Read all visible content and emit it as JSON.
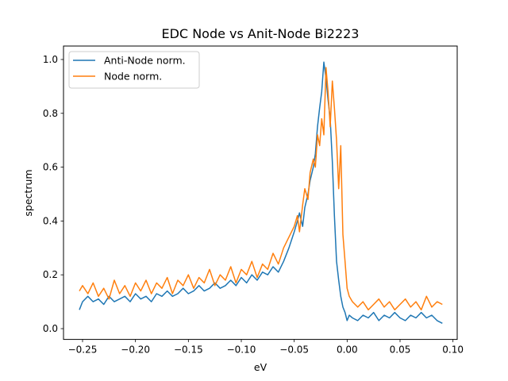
{
  "chart_data": {
    "type": "line",
    "title": "EDC Node vs Anit-Node Bi2223",
    "xlabel": "eV",
    "ylabel": "spectrum",
    "xlim": [
      -0.268,
      0.104
    ],
    "ylim": [
      -0.04,
      1.05
    ],
    "xticks": [
      -0.25,
      -0.2,
      -0.15,
      -0.1,
      -0.05,
      0.0,
      0.05,
      0.1
    ],
    "xtick_labels": [
      "−0.25",
      "−0.20",
      "−0.15",
      "−0.10",
      "−0.05",
      "0.00",
      "0.05",
      "0.10"
    ],
    "yticks": [
      0.0,
      0.2,
      0.4,
      0.6,
      0.8,
      1.0
    ],
    "ytick_labels": [
      "0.0",
      "0.2",
      "0.4",
      "0.6",
      "0.8",
      "1.0"
    ],
    "grid": false,
    "legend_position": "top-left",
    "series": [
      {
        "name": "Anti-Node norm.",
        "color": "#1f77b4",
        "x": [
          -0.253,
          -0.25,
          -0.245,
          -0.24,
          -0.235,
          -0.23,
          -0.225,
          -0.22,
          -0.215,
          -0.21,
          -0.205,
          -0.2,
          -0.195,
          -0.19,
          -0.185,
          -0.18,
          -0.175,
          -0.17,
          -0.165,
          -0.16,
          -0.155,
          -0.15,
          -0.145,
          -0.14,
          -0.135,
          -0.13,
          -0.125,
          -0.12,
          -0.115,
          -0.11,
          -0.105,
          -0.1,
          -0.095,
          -0.09,
          -0.085,
          -0.08,
          -0.075,
          -0.07,
          -0.065,
          -0.06,
          -0.055,
          -0.05,
          -0.047,
          -0.045,
          -0.042,
          -0.04,
          -0.037,
          -0.035,
          -0.032,
          -0.03,
          -0.028,
          -0.026,
          -0.024,
          -0.022,
          -0.02,
          -0.018,
          -0.016,
          -0.014,
          -0.012,
          -0.01,
          -0.008,
          -0.006,
          -0.004,
          -0.002,
          0.0,
          0.002,
          0.005,
          0.01,
          0.015,
          0.02,
          0.025,
          0.03,
          0.035,
          0.04,
          0.045,
          0.05,
          0.055,
          0.06,
          0.065,
          0.07,
          0.075,
          0.08,
          0.085,
          0.09
        ],
        "y": [
          0.07,
          0.1,
          0.12,
          0.1,
          0.11,
          0.09,
          0.12,
          0.1,
          0.11,
          0.12,
          0.1,
          0.13,
          0.11,
          0.12,
          0.1,
          0.13,
          0.12,
          0.14,
          0.12,
          0.13,
          0.15,
          0.13,
          0.14,
          0.16,
          0.14,
          0.15,
          0.17,
          0.15,
          0.16,
          0.18,
          0.16,
          0.19,
          0.17,
          0.2,
          0.18,
          0.21,
          0.2,
          0.23,
          0.21,
          0.25,
          0.3,
          0.36,
          0.4,
          0.43,
          0.38,
          0.45,
          0.5,
          0.55,
          0.6,
          0.65,
          0.75,
          0.82,
          0.88,
          0.99,
          0.93,
          0.85,
          0.78,
          0.62,
          0.42,
          0.25,
          0.18,
          0.12,
          0.08,
          0.06,
          0.03,
          0.05,
          0.04,
          0.03,
          0.05,
          0.04,
          0.06,
          0.03,
          0.05,
          0.04,
          0.06,
          0.04,
          0.03,
          0.05,
          0.04,
          0.06,
          0.04,
          0.05,
          0.03,
          0.02
        ]
      },
      {
        "name": "Node norm.",
        "color": "#ff7f0e",
        "x": [
          -0.253,
          -0.25,
          -0.245,
          -0.24,
          -0.235,
          -0.23,
          -0.225,
          -0.22,
          -0.215,
          -0.21,
          -0.205,
          -0.2,
          -0.195,
          -0.19,
          -0.185,
          -0.18,
          -0.175,
          -0.17,
          -0.165,
          -0.16,
          -0.155,
          -0.15,
          -0.145,
          -0.14,
          -0.135,
          -0.13,
          -0.125,
          -0.12,
          -0.115,
          -0.11,
          -0.105,
          -0.1,
          -0.095,
          -0.09,
          -0.085,
          -0.08,
          -0.075,
          -0.07,
          -0.065,
          -0.06,
          -0.055,
          -0.05,
          -0.047,
          -0.045,
          -0.042,
          -0.04,
          -0.037,
          -0.035,
          -0.032,
          -0.03,
          -0.028,
          -0.026,
          -0.024,
          -0.022,
          -0.02,
          -0.018,
          -0.016,
          -0.014,
          -0.012,
          -0.01,
          -0.008,
          -0.006,
          -0.004,
          -0.002,
          0.0,
          0.002,
          0.005,
          0.01,
          0.015,
          0.02,
          0.025,
          0.03,
          0.035,
          0.04,
          0.045,
          0.05,
          0.055,
          0.06,
          0.065,
          0.07,
          0.075,
          0.08,
          0.085,
          0.09
        ],
        "y": [
          0.14,
          0.16,
          0.13,
          0.17,
          0.12,
          0.15,
          0.11,
          0.18,
          0.13,
          0.16,
          0.12,
          0.17,
          0.14,
          0.18,
          0.13,
          0.17,
          0.15,
          0.19,
          0.13,
          0.18,
          0.16,
          0.2,
          0.15,
          0.19,
          0.17,
          0.22,
          0.16,
          0.2,
          0.18,
          0.23,
          0.17,
          0.22,
          0.2,
          0.25,
          0.19,
          0.24,
          0.22,
          0.28,
          0.24,
          0.3,
          0.34,
          0.38,
          0.42,
          0.36,
          0.46,
          0.52,
          0.48,
          0.58,
          0.63,
          0.6,
          0.72,
          0.68,
          0.78,
          0.72,
          0.97,
          0.88,
          0.75,
          0.92,
          0.82,
          0.7,
          0.52,
          0.68,
          0.35,
          0.25,
          0.15,
          0.12,
          0.1,
          0.08,
          0.1,
          0.07,
          0.09,
          0.11,
          0.08,
          0.1,
          0.07,
          0.09,
          0.11,
          0.08,
          0.1,
          0.07,
          0.12,
          0.08,
          0.1,
          0.09
        ]
      }
    ]
  }
}
